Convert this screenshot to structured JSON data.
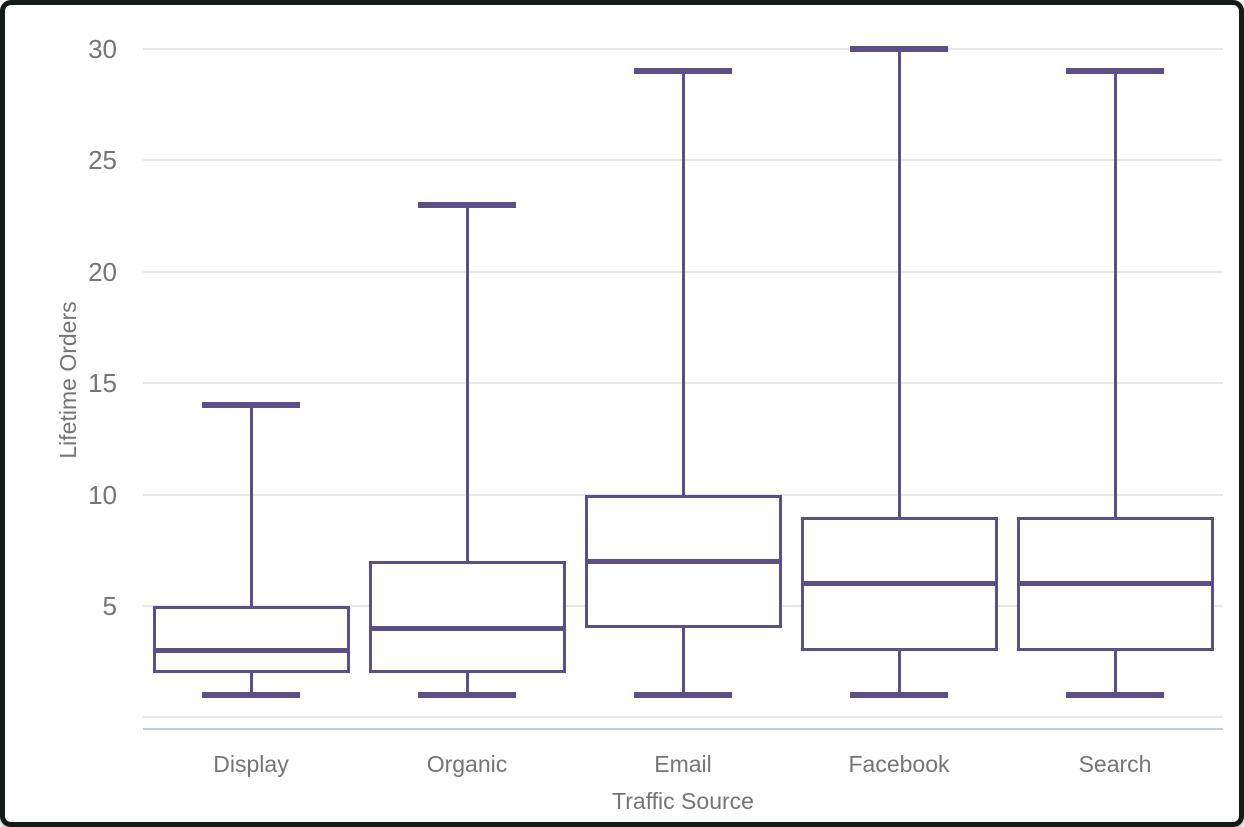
{
  "colors": {
    "box_stroke": "#5c4e86",
    "median": "#5c4e86",
    "grid": "#e8e8e8",
    "zero_line": "#e8e8e8",
    "axis_line": "#bfcfe3",
    "label": "#757575",
    "frame": "#141919",
    "background": "#ffffff"
  },
  "chart_data": {
    "type": "boxplot",
    "title": "",
    "xlabel": "Traffic Source",
    "ylabel": "Lifetime Orders",
    "categories": [
      "Display",
      "Organic",
      "Email",
      "Facebook",
      "Search"
    ],
    "series": [
      {
        "name": "Display",
        "min": 1,
        "q1": 2,
        "median": 3,
        "q3": 5,
        "max": 14
      },
      {
        "name": "Organic",
        "min": 1,
        "q1": 2,
        "median": 4,
        "q3": 7,
        "max": 23
      },
      {
        "name": "Email",
        "min": 1,
        "q1": 4,
        "median": 7,
        "q3": 10,
        "max": 29
      },
      {
        "name": "Facebook",
        "min": 1,
        "q1": 3,
        "median": 6,
        "q3": 9,
        "max": 30
      },
      {
        "name": "Search",
        "min": 1,
        "q1": 3,
        "median": 6,
        "q3": 9,
        "max": 29
      }
    ],
    "ylim": [
      0,
      31
    ],
    "yticks": [
      5,
      10,
      15,
      20,
      25,
      30
    ],
    "baseline": 0,
    "grid": "horizontal",
    "legend": "none"
  }
}
